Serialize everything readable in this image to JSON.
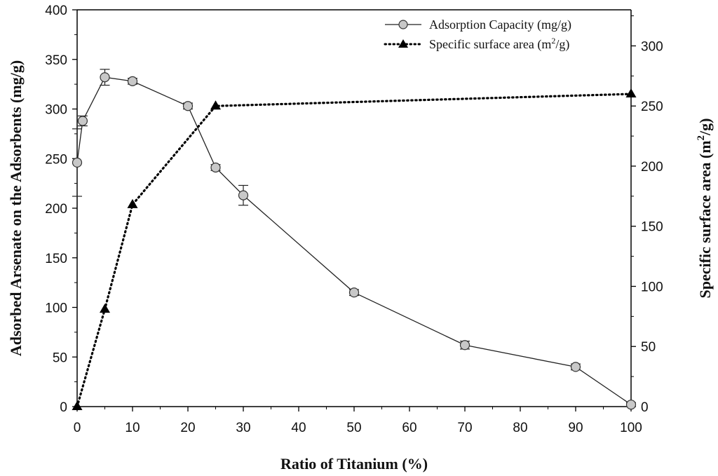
{
  "chart_data": {
    "type": "line",
    "xlabel": "Ratio of Titanium (%)",
    "ylabel_left": "Adsorbed Arsenate on the Adsorbents (mg/g)",
    "ylabel_right": {
      "prefix": "Specific surface area (m",
      "sup": "2",
      "suffix": "/g)"
    },
    "x_range": [
      0,
      100
    ],
    "x_ticks": [
      0,
      10,
      20,
      30,
      40,
      50,
      60,
      70,
      80,
      90,
      100
    ],
    "y_left_range": [
      0,
      400
    ],
    "y_left_ticks": [
      0,
      50,
      100,
      150,
      200,
      250,
      300,
      350,
      400
    ],
    "y_right_range": [
      0,
      330
    ],
    "y_right_ticks": [
      0,
      50,
      100,
      150,
      200,
      250,
      300
    ],
    "series": [
      {
        "name": "Adsorption Capacity (mg/g)",
        "axis": "left",
        "marker": "circle",
        "line": "solid",
        "color": "#c8c8c8",
        "x": [
          0,
          1,
          5,
          10,
          20,
          25,
          30,
          50,
          70,
          90,
          100
        ],
        "y": [
          246,
          288,
          332,
          328,
          303,
          241,
          213,
          115,
          62,
          40,
          2
        ],
        "err": [
          34,
          5,
          8,
          3,
          3,
          3,
          10,
          3,
          4,
          3,
          2
        ]
      },
      {
        "name": "Specific surface area",
        "name_sup": "2",
        "name_full": "Specific surface area (m2/g)",
        "axis": "right",
        "marker": "triangle",
        "line": "dotted",
        "color": "#000000",
        "x": [
          0,
          5,
          10,
          25,
          100
        ],
        "y": [
          0,
          81,
          168,
          250,
          260
        ]
      }
    ],
    "legend": {
      "position": "top-right",
      "entries": [
        {
          "label": "Adsorption Capacity (mg/g)"
        },
        {
          "prefix": "Specific surface area (m",
          "sup": "2",
          "suffix": "/g)"
        }
      ]
    }
  }
}
